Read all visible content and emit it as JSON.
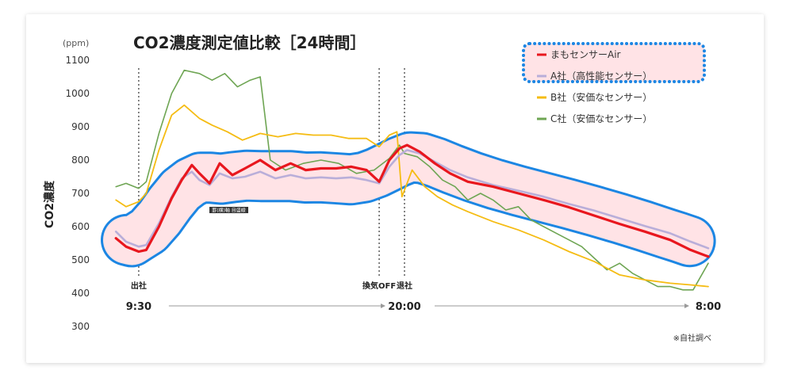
{
  "chart_data": {
    "type": "line",
    "title": "CO2濃度測定値比較［24時間］",
    "unit": "(ppm)",
    "ylabel": "CO2濃度",
    "ylim": [
      300,
      1100
    ],
    "yticks": [
      300,
      400,
      500,
      600,
      700,
      800,
      900,
      1000,
      1100
    ],
    "x_range": [
      0,
      24
    ],
    "x_time_labels": [
      {
        "t": 1.5,
        "label": "9:30"
      },
      {
        "t": 12,
        "label": "20:00"
      },
      {
        "t": 24,
        "label": "8:00"
      }
    ],
    "events": [
      {
        "t": 1.5,
        "label": "出社"
      },
      {
        "t": 11.0,
        "label": "換気OFF"
      },
      {
        "t": 12.0,
        "label": "退社"
      }
    ],
    "small_label": "罫(横)軸 目盛線",
    "note": "※自社調べ",
    "legend_position": "top-right",
    "series": [
      {
        "name": "まもセンサーAir",
        "color": "#e8171e",
        "x": [
          0.6,
          1.0,
          1.5,
          1.8,
          2.3,
          2.8,
          3.2,
          3.6,
          3.9,
          4.3,
          4.7,
          5.2,
          5.7,
          6.3,
          6.9,
          7.5,
          8.1,
          8.7,
          9.3,
          9.9,
          10.5,
          11.0,
          11.4,
          11.8,
          12.1,
          12.6,
          13.2,
          13.8,
          14.5,
          15.5,
          16.5,
          17.5,
          18.5,
          19.5,
          20.5,
          21.5,
          22.5,
          23.3,
          24.0
        ],
        "values": [
          565,
          540,
          525,
          530,
          600,
          685,
          740,
          785,
          760,
          730,
          790,
          755,
          775,
          800,
          770,
          790,
          770,
          775,
          775,
          780,
          770,
          735,
          800,
          835,
          845,
          825,
          790,
          760,
          735,
          720,
          700,
          680,
          658,
          633,
          608,
          585,
          560,
          530,
          510
        ]
      },
      {
        "name": "A社（高性能センサー）",
        "color": "#b9aed9",
        "x": [
          0.6,
          1.0,
          1.5,
          1.8,
          2.3,
          2.8,
          3.2,
          3.6,
          3.9,
          4.3,
          4.7,
          5.2,
          5.7,
          6.3,
          6.9,
          7.5,
          8.1,
          8.7,
          9.3,
          9.9,
          10.5,
          11.0,
          11.4,
          11.8,
          12.1,
          12.6,
          13.2,
          13.8,
          14.5,
          15.5,
          16.5,
          17.5,
          18.5,
          19.5,
          20.5,
          21.5,
          22.5,
          23.3,
          24.0
        ],
        "values": [
          585,
          555,
          540,
          545,
          610,
          690,
          745,
          765,
          740,
          725,
          760,
          745,
          750,
          765,
          745,
          755,
          745,
          748,
          745,
          748,
          740,
          730,
          780,
          815,
          830,
          820,
          795,
          770,
          748,
          725,
          708,
          690,
          668,
          648,
          625,
          602,
          580,
          555,
          535
        ]
      },
      {
        "name": "B社（安価なセンサー）",
        "color": "#f5bc13",
        "x": [
          0.6,
          1.0,
          1.5,
          1.8,
          2.3,
          2.8,
          3.3,
          3.9,
          4.4,
          5.0,
          5.6,
          6.3,
          7.0,
          7.7,
          8.4,
          9.1,
          9.8,
          10.5,
          11.0,
          11.4,
          11.7,
          11.9,
          12.3,
          12.8,
          13.3,
          13.9,
          14.5,
          15.5,
          16.5,
          17.5,
          18.5,
          19.5,
          20.5,
          21.5,
          22.5,
          23.3,
          24.0
        ],
        "values": [
          680,
          660,
          675,
          700,
          830,
          935,
          965,
          925,
          905,
          885,
          860,
          880,
          870,
          880,
          875,
          875,
          865,
          865,
          840,
          875,
          885,
          690,
          770,
          720,
          690,
          665,
          645,
          615,
          590,
          560,
          525,
          495,
          455,
          440,
          430,
          425,
          420
        ]
      },
      {
        "name": "C社（安価なセンサー）",
        "color": "#6ea553",
        "x": [
          0.6,
          1.0,
          1.5,
          1.8,
          2.3,
          2.8,
          3.3,
          3.9,
          4.4,
          4.9,
          5.4,
          5.9,
          6.3,
          6.7,
          7.3,
          8.0,
          8.7,
          9.4,
          10.1,
          10.8,
          11.4,
          11.8,
          12.0,
          12.5,
          13.0,
          13.5,
          14.0,
          14.5,
          15.0,
          15.5,
          16.0,
          16.5,
          17.0,
          17.5,
          18.0,
          18.5,
          19.0,
          19.5,
          20.0,
          20.5,
          21.0,
          21.5,
          22.0,
          22.5,
          23.0,
          23.4,
          24.0
        ],
        "values": [
          720,
          730,
          715,
          735,
          880,
          1000,
          1070,
          1060,
          1040,
          1060,
          1020,
          1040,
          1050,
          800,
          770,
          790,
          800,
          790,
          760,
          770,
          805,
          845,
          820,
          810,
          780,
          740,
          720,
          680,
          700,
          680,
          650,
          660,
          620,
          600,
          580,
          560,
          540,
          505,
          470,
          490,
          460,
          440,
          420,
          420,
          410,
          410,
          490
        ]
      }
    ]
  }
}
